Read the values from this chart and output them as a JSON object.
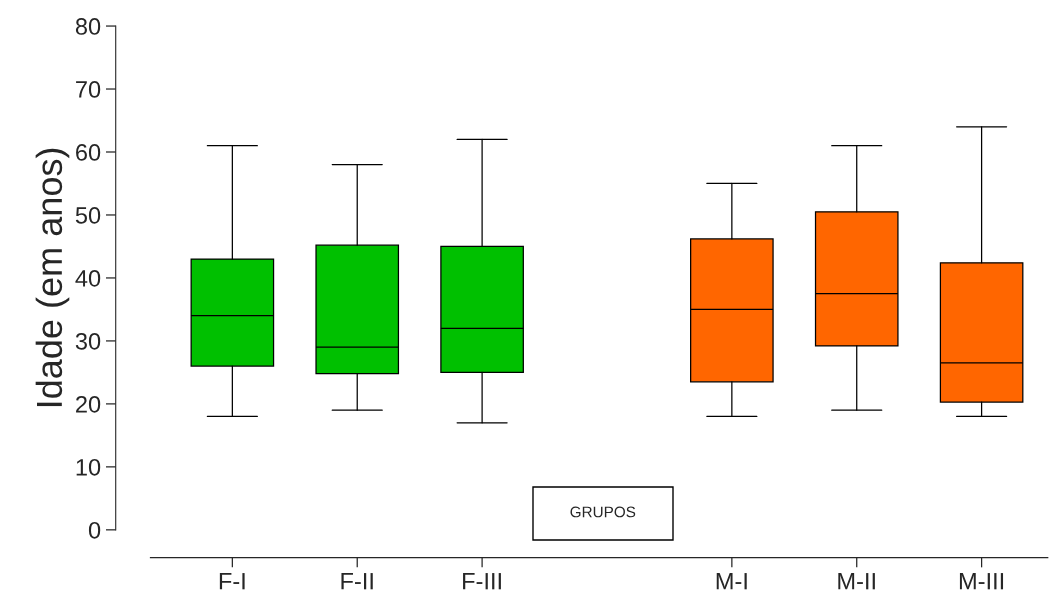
{
  "chart_data": {
    "type": "box",
    "ylabel": "Idade (em anos)",
    "categories": [
      "F-I",
      "F-II",
      "F-III",
      null,
      "M-I",
      "M-II",
      "M-III"
    ],
    "boxes": [
      {
        "low": 18,
        "q1": 26,
        "median": 34,
        "q3": 43,
        "high": 61
      },
      {
        "low": 19,
        "q1": 24.8,
        "median": 29,
        "q3": 45.2,
        "high": 58
      },
      {
        "low": 17,
        "q1": 25,
        "median": 32,
        "q3": 45,
        "high": 62
      },
      null,
      {
        "low": 18,
        "q1": 23.5,
        "median": 35,
        "q3": 46.2,
        "high": 55
      },
      {
        "low": 19,
        "q1": 29.2,
        "median": 37.5,
        "q3": 50.5,
        "high": 61
      },
      {
        "low": 18,
        "q1": 20.3,
        "median": 26.5,
        "q3": 42.4,
        "high": 64
      }
    ],
    "colors": [
      "#00c000",
      "#00c000",
      "#00c000",
      null,
      "#ff6600",
      "#ff6600",
      "#ff6600"
    ],
    "ylim": [
      0,
      80
    ],
    "yticks": [
      0,
      10,
      20,
      30,
      40,
      50,
      60,
      70,
      80
    ],
    "grid": false,
    "legend": false,
    "annotations": [
      "GRUPOS"
    ]
  }
}
